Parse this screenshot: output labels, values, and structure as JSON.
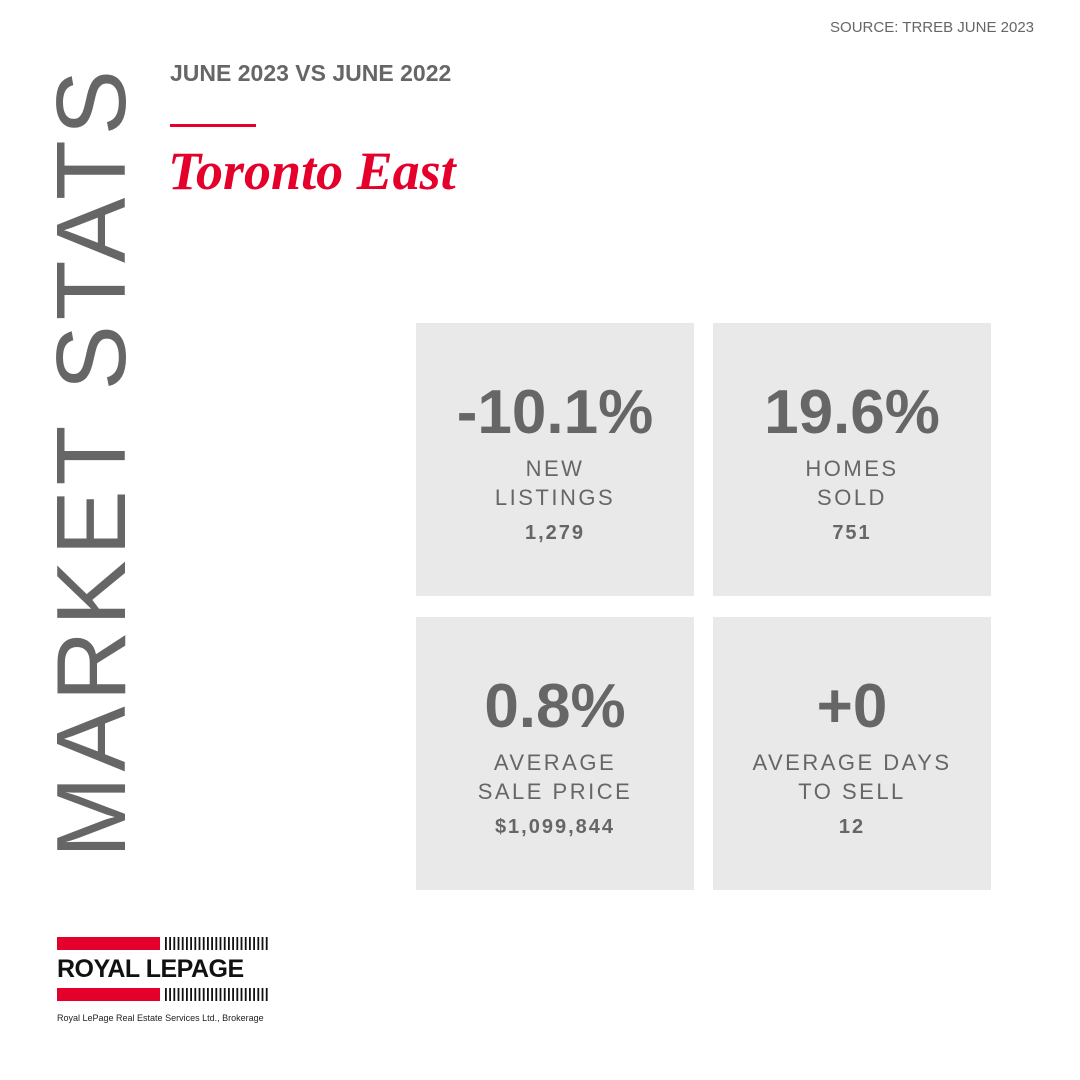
{
  "source": "SOURCE:  TRREB JUNE 2023",
  "subtitle": "JUNE 2023 VS JUNE 2022",
  "title": "Toronto East",
  "side_title": "MARKET STATS",
  "stats": [
    {
      "change": "-10.1%",
      "label": [
        "NEW",
        "LISTINGS"
      ],
      "value": "1,279"
    },
    {
      "change": "19.6%",
      "label": [
        "HOMES",
        "SOLD"
      ],
      "value": "751"
    },
    {
      "change": "0.8%",
      "label": [
        "AVERAGE",
        "SALE PRICE"
      ],
      "value": "$1,099,844"
    },
    {
      "change": "+0",
      "label": [
        "AVERAGE DAYS",
        "TO SELL"
      ],
      "value": "12"
    }
  ],
  "logo": {
    "name": "ROYAL LEPAGE",
    "tagline": "Royal LePage Real Estate Services Ltd., Brokerage"
  }
}
